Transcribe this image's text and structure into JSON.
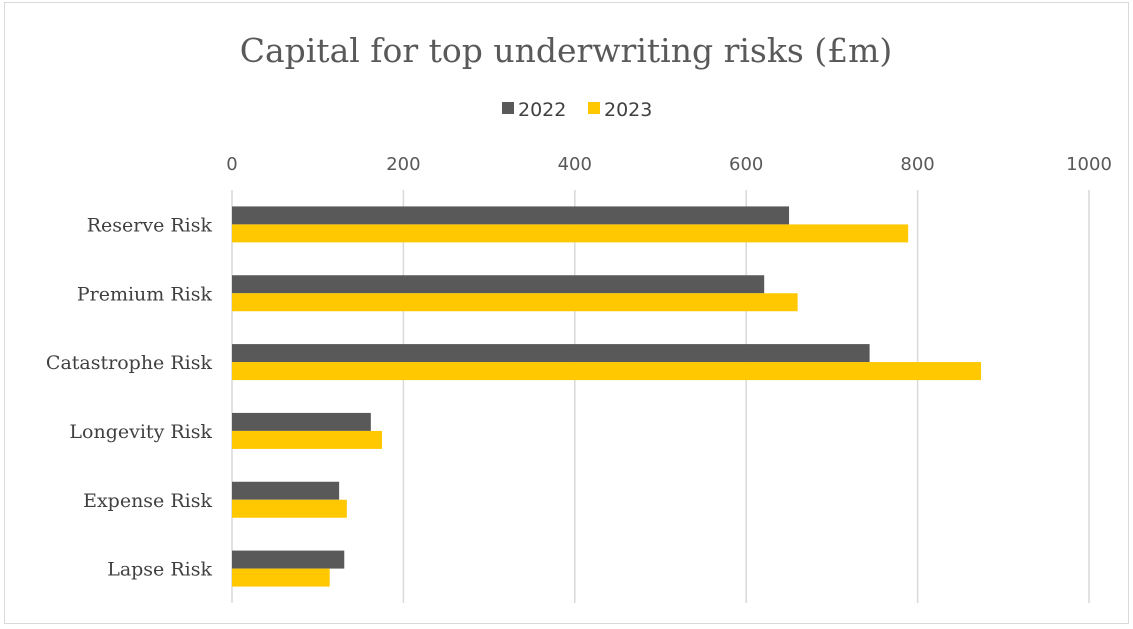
{
  "chart_data": {
    "type": "bar",
    "orientation": "horizontal",
    "title": "Capital for top underwriting risks (£m)",
    "xlabel": "",
    "ylabel": "",
    "categories": [
      "Reserve Risk",
      "Premium Risk",
      "Catastrophe Risk",
      "Longevity Risk",
      "Expense Risk",
      "Lapse Risk"
    ],
    "series": [
      {
        "name": "2022",
        "color": "#595959",
        "values": [
          650,
          621,
          744,
          162,
          125,
          131
        ]
      },
      {
        "name": "2023",
        "color": "#FFC800",
        "values": [
          789,
          660,
          874,
          175,
          134,
          114
        ]
      }
    ],
    "xlim": [
      0,
      1000
    ],
    "ticks": [
      "0",
      "200",
      "400",
      "600",
      "800",
      "1000"
    ],
    "tick_values": [
      0,
      200,
      400,
      600,
      800,
      1000
    ],
    "grid": true,
    "legend_position": "top"
  }
}
